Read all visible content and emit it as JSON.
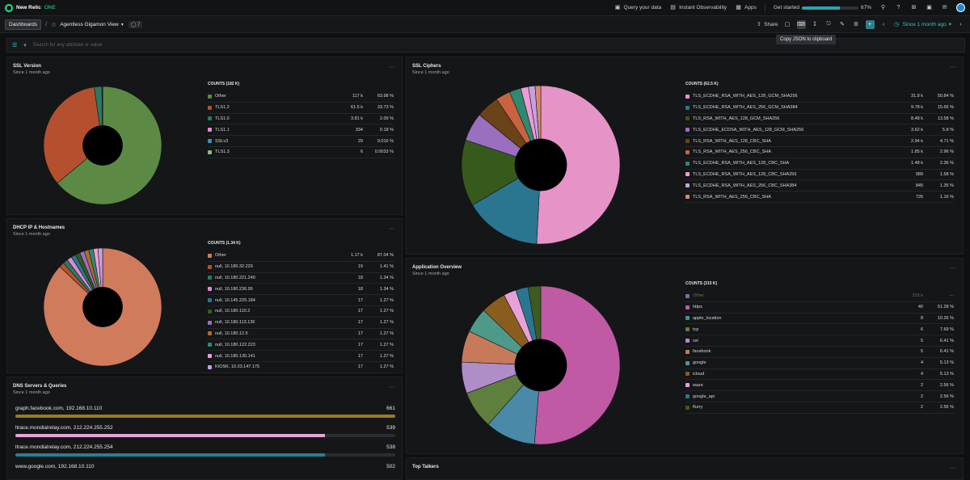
{
  "nav": {
    "brand": "New Relic",
    "brand_suffix": "ONE",
    "query_label": "Query your data",
    "observability_label": "Instant Observability",
    "apps_label": "Apps",
    "get_started_label": "Get started",
    "progress_pct": 67,
    "progress_text": "67%"
  },
  "toolbar": {
    "dashboards_label": "Dashboards",
    "separator": "/",
    "dashboard_name": "Agentless Gigamon View",
    "tag_count": "7",
    "share_label": "Share",
    "time_label": "Since 1 month ago",
    "tooltip": "Copy JSON to clipboard"
  },
  "filter": {
    "placeholder": "Search for any attribute or value."
  },
  "widgets": {
    "ssl_version": {
      "title": "SSL Version",
      "subtitle": "Since 1 month ago",
      "legend_header": "COUNTS (182 K)",
      "items": [
        {
          "name": "Other",
          "count": "117 k",
          "pct": "63.98 %",
          "value": 63.98,
          "color": "#5c8a45"
        },
        {
          "name": "TLS1.2",
          "count": "61.5 k",
          "pct": "33.73 %",
          "value": 33.73,
          "color": "#b4502e"
        },
        {
          "name": "TLS1.0",
          "count": "3.81 k",
          "pct": "2.09 %",
          "value": 2.09,
          "color": "#2a7a64"
        },
        {
          "name": "TLS1.1",
          "count": "334",
          "pct": "0.18 %",
          "value": 0.18,
          "color": "#e08ad0"
        },
        {
          "name": "SSLv3",
          "count": "29",
          "pct": "0.016 %",
          "value": 0.016,
          "color": "#3f8fb0"
        },
        {
          "name": "TLS1.3",
          "count": "6",
          "pct": "0.0033 %",
          "value": 0.0033,
          "color": "#8fb38a"
        }
      ]
    },
    "ssl_ciphers": {
      "title": "SSL Ciphers",
      "subtitle": "Since 1 month ago",
      "legend_header": "COUNTS (62.5 K)",
      "items": [
        {
          "name": "TLS_ECDHE_RSA_WITH_AES_128_GCM_SHA256",
          "count": "31.8 k",
          "pct": "50.84 %",
          "value": 50.84,
          "color": "#e693c8"
        },
        {
          "name": "TLS_ECDHE_RSA_WITH_AES_256_GCM_SHA384",
          "count": "9.78 k",
          "pct": "15.66 %",
          "value": 15.66,
          "color": "#2a7691"
        },
        {
          "name": "TLS_RSA_WITH_AES_128_GCM_SHA256",
          "count": "8.48 k",
          "pct": "13.58 %",
          "value": 13.58,
          "color": "#365a1b"
        },
        {
          "name": "TLS_ECDHE_ECDSA_WITH_AES_128_GCM_SHA256",
          "count": "3.62 k",
          "pct": "5.8 %",
          "value": 5.8,
          "color": "#9a6fbf"
        },
        {
          "name": "TLS_RSA_WITH_AES_128_CBC_SHA",
          "count": "2.94 k",
          "pct": "4.71 %",
          "value": 4.71,
          "color": "#6a4318"
        },
        {
          "name": "TLS_RSA_WITH_AES_256_CBC_SHA",
          "count": "1.85 k",
          "pct": "2.96 %",
          "value": 2.96,
          "color": "#c9623f"
        },
        {
          "name": "TLS_ECDHE_RSA_WITH_AES_128_CBC_SHA",
          "count": "1.48 k",
          "pct": "2.36 %",
          "value": 2.36,
          "color": "#2e8a70"
        },
        {
          "name": "TLS_ECDHE_RSA_WITH_AES_128_CBC_SHA256",
          "count": "989",
          "pct": "1.58 %",
          "value": 1.58,
          "color": "#f09ad8"
        },
        {
          "name": "TLS_ECDHE_RSA_WITH_AES_256_CBC_SHA384",
          "count": "845",
          "pct": "1.35 %",
          "value": 1.35,
          "color": "#c7a0e0"
        },
        {
          "name": "TLS_RSA_WITH_AES_256_CBC_SHA",
          "count": "726",
          "pct": "1.16 %",
          "value": 1.16,
          "color": "#d88a6a"
        }
      ]
    },
    "dhcp": {
      "title": "DHCP IP & Hostnames",
      "subtitle": "Since 1 month ago",
      "legend_header": "COUNTS (1.34 K)",
      "items": [
        {
          "name": "Other",
          "count": "1.17 k",
          "pct": "87.04 %",
          "value": 87.04,
          "color": "#cf7b5c"
        },
        {
          "name": "null, 10.180.32.229",
          "count": "19",
          "pct": "1.41 %",
          "value": 1.41,
          "color": "#b4502e"
        },
        {
          "name": "null, 10.180.221.240",
          "count": "18",
          "pct": "1.34 %",
          "value": 1.34,
          "color": "#2a7a64"
        },
        {
          "name": "null, 10.180.236.95",
          "count": "18",
          "pct": "1.34 %",
          "value": 1.34,
          "color": "#e08ad0"
        },
        {
          "name": "null, 10.145.225.184",
          "count": "17",
          "pct": "1.27 %",
          "value": 1.27,
          "color": "#2a7691"
        },
        {
          "name": "null, 10.180.110.2",
          "count": "17",
          "pct": "1.27 %",
          "value": 1.27,
          "color": "#365a1b"
        },
        {
          "name": "null, 10.180.113.136",
          "count": "17",
          "pct": "1.27 %",
          "value": 1.27,
          "color": "#9a6fbf"
        },
        {
          "name": "null, 10.180.12.5",
          "count": "17",
          "pct": "1.27 %",
          "value": 1.27,
          "color": "#b06a2e"
        },
        {
          "name": "null, 10.180.122.223",
          "count": "17",
          "pct": "1.27 %",
          "value": 1.27,
          "color": "#2e8a70"
        },
        {
          "name": "null, 10.180.130.141",
          "count": "17",
          "pct": "1.27 %",
          "value": 1.27,
          "color": "#f09ad8"
        },
        {
          "name": "KIOSK, 10.33.147.175",
          "count": "17",
          "pct": "1.27 %",
          "value": 1.27,
          "color": "#c7a0e0"
        }
      ]
    },
    "app_overview": {
      "title": "Application Overview",
      "subtitle": "Since 1 month ago",
      "legend_header": "COUNTS (315 K)",
      "other": {
        "name": "Other",
        "count": "315 k",
        "pct": "—"
      },
      "items": [
        {
          "name": "https",
          "count": "40",
          "pct": "51.28 %",
          "value": 51.28,
          "color": "#c05aa5"
        },
        {
          "name": "apple_location",
          "count": "8",
          "pct": "10.26 %",
          "value": 10.26,
          "color": "#4a8aa8"
        },
        {
          "name": "tcp",
          "count": "6",
          "pct": "7.69 %",
          "value": 7.69,
          "color": "#5e7f3e"
        },
        {
          "name": "ssl",
          "count": "5",
          "pct": "6.41 %",
          "value": 6.41,
          "color": "#b08cc8"
        },
        {
          "name": "facebook",
          "count": "5",
          "pct": "6.41 %",
          "value": 6.41,
          "color": "#c77a5a"
        },
        {
          "name": "google",
          "count": "4",
          "pct": "5.13 %",
          "value": 5.13,
          "color": "#4e9a8a"
        },
        {
          "name": "icloud",
          "count": "4",
          "pct": "5.13 %",
          "value": 5.13,
          "color": "#8a5c1e"
        },
        {
          "name": "waze",
          "count": "2",
          "pct": "2.56 %",
          "value": 2.56,
          "color": "#e8a0d8"
        },
        {
          "name": "google_api",
          "count": "2",
          "pct": "2.56 %",
          "value": 2.56,
          "color": "#2a7691"
        },
        {
          "name": "flurry",
          "count": "2",
          "pct": "2.56 %",
          "value": 2.56,
          "color": "#3e5a1e"
        }
      ]
    },
    "dns": {
      "title": "DNS Servers & Queries",
      "subtitle": "Since 1 month ago",
      "max": 661,
      "items": [
        {
          "name": "graph.facebook.com, 192.168.10.110",
          "value": 661,
          "color": "#9c7a1e"
        },
        {
          "name": "ltrace.mondialrelay.com, 212.224.255.252",
          "value": 539,
          "color": "#e6a4d8"
        },
        {
          "name": "ltrace.mondialrelay.com, 212.224.255.254",
          "value": 538,
          "color": "#2a7e97"
        },
        {
          "name": "www.google.com, 192.168.10.110",
          "value": 502,
          "color": "#6a8a3e"
        }
      ]
    },
    "top_talkers": {
      "title": "Top Talkers"
    }
  }
}
